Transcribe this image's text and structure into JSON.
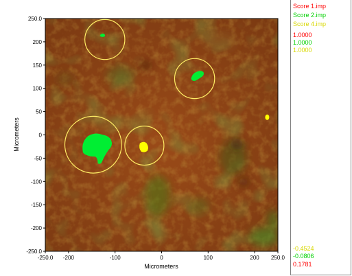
{
  "chart_data": {
    "type": "heatmap",
    "title": "",
    "xlabel": "Micrometers",
    "ylabel": "Micrometers",
    "xlim": [
      -250,
      250
    ],
    "ylim": [
      -250,
      250
    ],
    "x_ticks": [
      "-250.0",
      "-200",
      "-100",
      "0",
      "100",
      "200",
      "250.0"
    ],
    "x_tick_values": [
      -250,
      -200,
      -100,
      0,
      100,
      200,
      250
    ],
    "y_ticks": [
      "250.0",
      "200",
      "150",
      "100",
      "50",
      "0",
      "-50",
      "-100",
      "-150",
      "-200",
      "-250.0"
    ],
    "y_tick_values": [
      250,
      200,
      150,
      100,
      50,
      0,
      -50,
      -100,
      -150,
      -200,
      -250
    ],
    "series": [
      {
        "name": "Score 1.imp",
        "color": "#ff0000",
        "max": "1.0000",
        "min": "0.1781"
      },
      {
        "name": "Score 2.imp",
        "color": "#00cc00",
        "max": "1.0000",
        "min": "-0.0806"
      },
      {
        "name": "Score 4.imp",
        "color": "#ffff00",
        "max": "1.0000",
        "min": "-0.4524"
      }
    ],
    "regions": [
      {
        "series": "Score 2.imp",
        "x": -127,
        "y": 213,
        "shape": "small-spot"
      },
      {
        "series": "Score 2.imp",
        "x": 78,
        "y": 128,
        "shape": "blob"
      },
      {
        "series": "Score 2.imp",
        "x": -143,
        "y": -20,
        "shape": "large-blob"
      },
      {
        "series": "Score 4.imp",
        "x": -38,
        "y": -27,
        "shape": "blob"
      },
      {
        "series": "Score 4.imp",
        "x": 227,
        "y": 38,
        "shape": "dot"
      }
    ],
    "circles": [
      {
        "x": -122,
        "y": 205,
        "r": 43
      },
      {
        "x": 71,
        "y": 121,
        "r": 43
      },
      {
        "x": -147,
        "y": -21,
        "r": 61
      },
      {
        "x": -37,
        "y": -23,
        "r": 42
      }
    ],
    "grid": false,
    "legend": "right"
  }
}
